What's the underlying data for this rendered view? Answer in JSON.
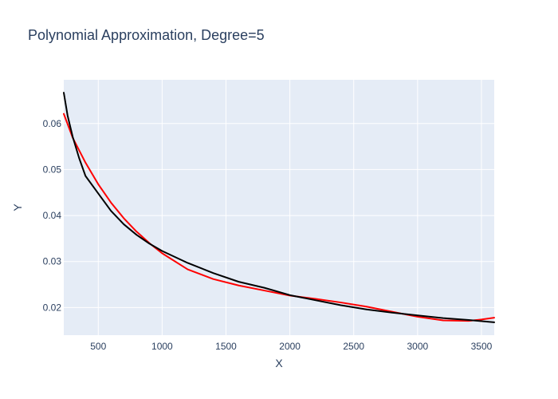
{
  "chart_data": {
    "type": "line",
    "title": "Polynomial Approximation, Degree=5",
    "xlabel": "X",
    "ylabel": "Y",
    "xlim": [
      230,
      3600
    ],
    "ylim": [
      0.014,
      0.0695
    ],
    "x_ticks": [
      500,
      1000,
      1500,
      2000,
      2500,
      3000,
      3500
    ],
    "y_ticks": [
      0.02,
      0.03,
      0.04,
      0.05,
      0.06
    ],
    "grid": true,
    "colors": {
      "plot_bg": "#e5ecf6",
      "text": "#2a3f5f"
    },
    "series": [
      {
        "color": "#ff0000",
        "x": [
          230,
          300,
          400,
          500,
          600,
          700,
          800,
          900,
          1000,
          1200,
          1400,
          1600,
          1800,
          2000,
          2200,
          2400,
          2600,
          2800,
          3000,
          3200,
          3400,
          3500,
          3600
        ],
        "y": [
          0.0621,
          0.0569,
          0.0515,
          0.0468,
          0.0428,
          0.0394,
          0.0365,
          0.034,
          0.0318,
          0.0283,
          0.0262,
          0.0248,
          0.0237,
          0.0226,
          0.0219,
          0.0211,
          0.0202,
          0.0191,
          0.018,
          0.0172,
          0.0171,
          0.0174,
          0.0178
        ]
      },
      {
        "color": "#000000",
        "x": [
          230,
          260,
          300,
          350,
          400,
          500,
          600,
          700,
          800,
          900,
          1000,
          1200,
          1400,
          1600,
          1800,
          2000,
          2200,
          2400,
          2600,
          2800,
          3000,
          3200,
          3400,
          3600
        ],
        "y": [
          0.0667,
          0.0617,
          0.0571,
          0.0525,
          0.0486,
          0.0448,
          0.041,
          0.0381,
          0.0358,
          0.0339,
          0.0323,
          0.0297,
          0.0275,
          0.0256,
          0.0243,
          0.0227,
          0.0216,
          0.0205,
          0.0196,
          0.0189,
          0.0183,
          0.0177,
          0.0173,
          0.0168
        ]
      }
    ]
  }
}
